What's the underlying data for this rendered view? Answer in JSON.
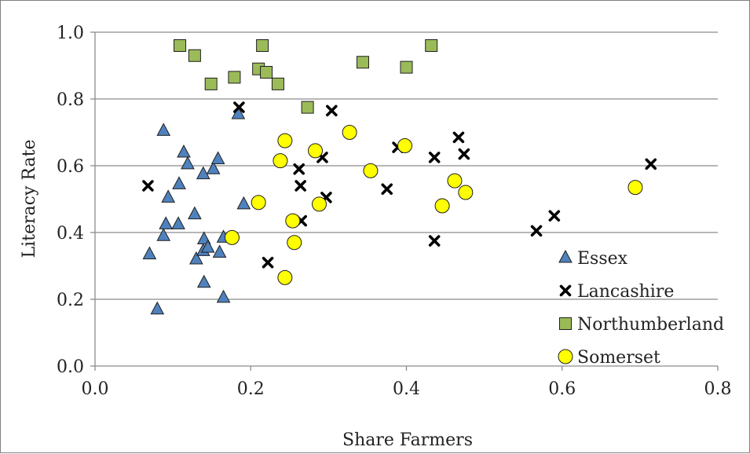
{
  "chart_data": {
    "type": "scatter",
    "title": "",
    "xlabel": "Share Farmers",
    "ylabel": "Literacy Rate",
    "xlim": [
      0.0,
      0.8
    ],
    "ylim": [
      0.0,
      1.0
    ],
    "xticks": [
      "0.0",
      "0.2",
      "0.4",
      "0.6",
      "0.8"
    ],
    "yticks": [
      "0.0",
      "0.2",
      "0.4",
      "0.6",
      "0.8",
      "1.0"
    ],
    "grid": "horizontal",
    "legend_position": "bottom-right",
    "series": [
      {
        "name": "Essex",
        "marker": "triangle",
        "color": "#4f81bd",
        "points": [
          [
            0.07,
            0.335
          ],
          [
            0.08,
            0.17
          ],
          [
            0.088,
            0.39
          ],
          [
            0.088,
            0.705
          ],
          [
            0.091,
            0.425
          ],
          [
            0.094,
            0.505
          ],
          [
            0.107,
            0.425
          ],
          [
            0.108,
            0.545
          ],
          [
            0.114,
            0.64
          ],
          [
            0.119,
            0.605
          ],
          [
            0.128,
            0.455
          ],
          [
            0.13,
            0.32
          ],
          [
            0.139,
            0.345
          ],
          [
            0.139,
            0.575
          ],
          [
            0.14,
            0.38
          ],
          [
            0.14,
            0.25
          ],
          [
            0.145,
            0.355
          ],
          [
            0.152,
            0.59
          ],
          [
            0.158,
            0.62
          ],
          [
            0.16,
            0.34
          ],
          [
            0.165,
            0.205
          ],
          [
            0.165,
            0.385
          ],
          [
            0.184,
            0.755
          ],
          [
            0.191,
            0.485
          ]
        ]
      },
      {
        "name": "Lancashire",
        "marker": "x",
        "color": "#000000",
        "points": [
          [
            0.068,
            0.54
          ],
          [
            0.185,
            0.775
          ],
          [
            0.222,
            0.31
          ],
          [
            0.262,
            0.59
          ],
          [
            0.264,
            0.54
          ],
          [
            0.265,
            0.435
          ],
          [
            0.292,
            0.625
          ],
          [
            0.297,
            0.505
          ],
          [
            0.304,
            0.765
          ],
          [
            0.375,
            0.53
          ],
          [
            0.389,
            0.655
          ],
          [
            0.436,
            0.375
          ],
          [
            0.436,
            0.625
          ],
          [
            0.467,
            0.685
          ],
          [
            0.474,
            0.635
          ],
          [
            0.567,
            0.405
          ],
          [
            0.59,
            0.45
          ],
          [
            0.714,
            0.605
          ]
        ]
      },
      {
        "name": "Northumberland",
        "marker": "square",
        "color": "#9bbb59",
        "points": [
          [
            0.109,
            0.96
          ],
          [
            0.128,
            0.93
          ],
          [
            0.149,
            0.845
          ],
          [
            0.179,
            0.865
          ],
          [
            0.21,
            0.89
          ],
          [
            0.215,
            0.96
          ],
          [
            0.22,
            0.88
          ],
          [
            0.235,
            0.845
          ],
          [
            0.273,
            0.775
          ],
          [
            0.344,
            0.91
          ],
          [
            0.4,
            0.895
          ],
          [
            0.432,
            0.96
          ]
        ]
      },
      {
        "name": "Somerset",
        "marker": "circle",
        "color": "#ffff00",
        "points": [
          [
            0.176,
            0.385
          ],
          [
            0.21,
            0.49
          ],
          [
            0.238,
            0.615
          ],
          [
            0.244,
            0.675
          ],
          [
            0.244,
            0.265
          ],
          [
            0.254,
            0.435
          ],
          [
            0.256,
            0.37
          ],
          [
            0.283,
            0.645
          ],
          [
            0.288,
            0.485
          ],
          [
            0.327,
            0.7
          ],
          [
            0.354,
            0.585
          ],
          [
            0.398,
            0.66
          ],
          [
            0.446,
            0.48
          ],
          [
            0.462,
            0.555
          ],
          [
            0.476,
            0.52
          ],
          [
            0.694,
            0.535
          ]
        ]
      }
    ]
  }
}
